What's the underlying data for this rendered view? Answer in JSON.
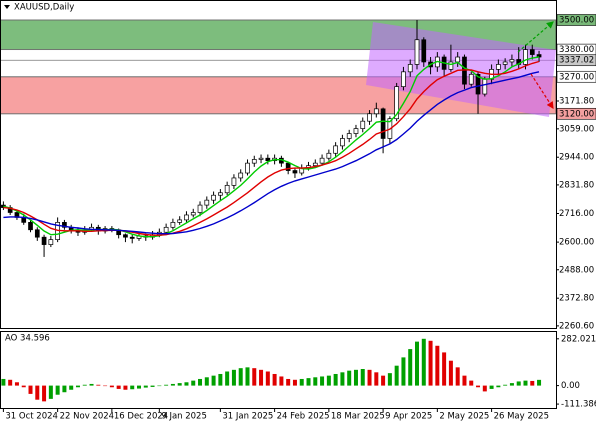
{
  "chart_data": [
    {
      "type": "candlestick",
      "title": "XAUUSD,Daily",
      "xlim": [
        -0.5,
        81.5
      ],
      "ylim": [
        2252,
        3577
      ],
      "yticks": [
        {
          "value": 3171.8,
          "label": "3171.80"
        },
        {
          "value": 3059,
          "label": "3059.00"
        },
        {
          "value": 2944,
          "label": "2944.00"
        },
        {
          "value": 2831.8,
          "label": "2831.80"
        },
        {
          "value": 2716,
          "label": "2716.00"
        },
        {
          "value": 2600,
          "label": "2600.00"
        },
        {
          "value": 2488,
          "label": "2488.00"
        },
        {
          "value": 2372.8,
          "label": "2372.80"
        },
        {
          "value": 2260.6,
          "label": "2260.60"
        }
      ],
      "levels": [
        {
          "value": 3500,
          "label": "3500.00",
          "color": "#78b878"
        },
        {
          "value": 3380,
          "label": "3380.00",
          "color": "#ffffff"
        },
        {
          "value": 3337.02,
          "label": "3337.02",
          "color": "#c8c8c8"
        },
        {
          "value": 3270,
          "label": "3270.00",
          "color": "#ffffff"
        },
        {
          "value": 3120,
          "label": "3120.00",
          "color": "#f4a0a0"
        }
      ],
      "zones": [
        {
          "ylim": [
            3380,
            3500
          ],
          "color": "#7dbd7d"
        },
        {
          "ylim": [
            3120,
            3270
          ],
          "color": "#f7a1a1"
        }
      ],
      "up_color": "#ffffff",
      "down_color": "#000000",
      "open": [
        2750,
        2740,
        2720,
        2700,
        2680,
        2650,
        2620,
        2590,
        2610,
        2680,
        2660,
        2650,
        2640,
        2650,
        2660,
        2645,
        2655,
        2650,
        2630,
        2620,
        2615,
        2625,
        2620,
        2630,
        2640,
        2660,
        2680,
        2690,
        2710,
        2720,
        2750,
        2770,
        2790,
        2800,
        2830,
        2860,
        2880,
        2920,
        2935,
        2940,
        2930,
        2940,
        2920,
        2890,
        2880,
        2900,
        2910,
        2920,
        2940,
        2960,
        2990,
        3020,
        3040,
        3060,
        3090,
        3120,
        3140,
        3020,
        3100,
        3230,
        3290,
        3320,
        3420,
        3330,
        3310,
        3350,
        3300,
        3330,
        3350,
        3240,
        3280,
        3200,
        3260,
        3300,
        3320,
        3330,
        3340,
        3320,
        3380,
        3360
      ],
      "high": [
        2765,
        2750,
        2730,
        2715,
        2690,
        2660,
        2630,
        2625,
        2700,
        2690,
        2670,
        2660,
        2665,
        2675,
        2670,
        2665,
        2665,
        2655,
        2635,
        2630,
        2640,
        2635,
        2645,
        2655,
        2675,
        2695,
        2705,
        2725,
        2735,
        2765,
        2785,
        2805,
        2815,
        2845,
        2875,
        2895,
        2935,
        2950,
        2955,
        2955,
        2955,
        2950,
        2925,
        2900,
        2915,
        2925,
        2935,
        2955,
        2975,
        3005,
        3035,
        3055,
        3075,
        3105,
        3135,
        3165,
        3145,
        3110,
        3245,
        3310,
        3340,
        3500,
        3430,
        3350,
        3370,
        3360,
        3400,
        3370,
        3360,
        3290,
        3290,
        3270,
        3320,
        3340,
        3345,
        3360,
        3390,
        3400,
        3400,
        3375
      ],
      "low": [
        2730,
        2710,
        2690,
        2670,
        2640,
        2605,
        2540,
        2580,
        2600,
        2650,
        2635,
        2625,
        2630,
        2645,
        2630,
        2635,
        2640,
        2615,
        2600,
        2595,
        2605,
        2605,
        2610,
        2620,
        2630,
        2650,
        2670,
        2680,
        2700,
        2705,
        2735,
        2755,
        2770,
        2790,
        2815,
        2845,
        2870,
        2905,
        2920,
        2915,
        2915,
        2905,
        2875,
        2860,
        2870,
        2890,
        2900,
        2910,
        2930,
        2945,
        2975,
        3005,
        3025,
        3045,
        3075,
        3105,
        2960,
        3000,
        3090,
        3215,
        3270,
        3300,
        3310,
        3280,
        3290,
        3270,
        3290,
        3310,
        3220,
        3230,
        3120,
        3190,
        3240,
        3280,
        3300,
        3310,
        3300,
        3300,
        3340,
        3330
      ],
      "close": [
        2740,
        2720,
        2700,
        2680,
        2650,
        2620,
        2590,
        2610,
        2680,
        2660,
        2650,
        2640,
        2650,
        2660,
        2645,
        2655,
        2650,
        2630,
        2620,
        2615,
        2625,
        2620,
        2630,
        2640,
        2660,
        2680,
        2690,
        2710,
        2720,
        2750,
        2770,
        2790,
        2800,
        2830,
        2860,
        2880,
        2920,
        2935,
        2940,
        2930,
        2940,
        2920,
        2890,
        2880,
        2900,
        2910,
        2920,
        2940,
        2960,
        2990,
        3020,
        3040,
        3060,
        3090,
        3120,
        3140,
        3020,
        3100,
        3230,
        3290,
        3320,
        3420,
        3330,
        3310,
        3350,
        3300,
        3330,
        3350,
        3240,
        3280,
        3200,
        3260,
        3300,
        3320,
        3330,
        3340,
        3320,
        3380,
        3360,
        3350
      ],
      "lines": [
        {
          "color": "#00cc00",
          "values": [
            2745,
            2738,
            2726,
            2710,
            2690,
            2668,
            2645,
            2630,
            2632,
            2640,
            2648,
            2650,
            2648,
            2649,
            2652,
            2650,
            2651,
            2650,
            2642,
            2632,
            2625,
            2622,
            2622,
            2626,
            2634,
            2646,
            2662,
            2678,
            2694,
            2710,
            2728,
            2748,
            2768,
            2786,
            2808,
            2830,
            2856,
            2884,
            2908,
            2926,
            2934,
            2934,
            2924,
            2910,
            2898,
            2896,
            2902,
            2912,
            2926,
            2944,
            2966,
            2990,
            3014,
            3036,
            3060,
            3086,
            3090,
            3088,
            3118,
            3162,
            3210,
            3274,
            3300,
            3320,
            3332,
            3326,
            3320,
            3328,
            3305,
            3295,
            3270,
            3260,
            3262,
            3274,
            3290,
            3310,
            3322,
            3338,
            3346,
            3350
          ]
        },
        {
          "color": "#e00000",
          "values": [
            2740,
            2737,
            2730,
            2720,
            2706,
            2690,
            2672,
            2656,
            2648,
            2646,
            2646,
            2646,
            2644,
            2644,
            2646,
            2647,
            2648,
            2648,
            2645,
            2640,
            2635,
            2631,
            2628,
            2628,
            2630,
            2636,
            2644,
            2654,
            2666,
            2680,
            2694,
            2710,
            2726,
            2742,
            2760,
            2780,
            2800,
            2822,
            2844,
            2864,
            2880,
            2892,
            2898,
            2900,
            2900,
            2902,
            2906,
            2912,
            2920,
            2930,
            2944,
            2960,
            2978,
            2996,
            3016,
            3038,
            3048,
            3058,
            3080,
            3108,
            3140,
            3180,
            3210,
            3236,
            3258,
            3272,
            3284,
            3296,
            3298,
            3298,
            3290,
            3284,
            3280,
            3280,
            3284,
            3292,
            3302,
            3314,
            3324,
            3332
          ]
        },
        {
          "color": "#0000cc",
          "values": [
            2700,
            2702,
            2702,
            2700,
            2696,
            2690,
            2682,
            2674,
            2668,
            2664,
            2660,
            2657,
            2654,
            2652,
            2651,
            2650,
            2649,
            2648,
            2646,
            2644,
            2641,
            2638,
            2636,
            2634,
            2634,
            2635,
            2638,
            2642,
            2648,
            2655,
            2664,
            2674,
            2686,
            2698,
            2712,
            2727,
            2743,
            2760,
            2778,
            2796,
            2812,
            2826,
            2838,
            2848,
            2856,
            2864,
            2872,
            2880,
            2888,
            2896,
            2906,
            2918,
            2930,
            2944,
            2958,
            2974,
            2986,
            2998,
            3016,
            3038,
            3062,
            3090,
            3114,
            3136,
            3158,
            3176,
            3192,
            3206,
            3216,
            3226,
            3232,
            3238,
            3244,
            3250,
            3256,
            3262,
            3268,
            3276,
            3284,
            3290
          ]
        }
      ]
    },
    {
      "type": "bar",
      "title": "AO 34.596",
      "xlim": [
        -0.5,
        81.5
      ],
      "ylim": [
        -135,
        323
      ],
      "yticks": [
        282.021,
        {
          "value": 0,
          "label": "0.00"
        },
        -111.386
      ],
      "xticks": [
        {
          "value": 0,
          "label": "31 Oct 2024"
        },
        {
          "value": 8,
          "label": "22 Nov 2024"
        },
        {
          "value": 16,
          "label": "16 Dec 2024"
        },
        {
          "value": 23,
          "label": "9 Jan 2025"
        },
        {
          "value": 32,
          "label": "31 Jan 2025"
        },
        {
          "value": 40,
          "label": "24 Feb 2025"
        },
        {
          "value": 48,
          "label": "18 Mar 2025"
        },
        {
          "value": 56,
          "label": "9 Apr 2025"
        },
        {
          "value": 64,
          "label": "2 May 2025"
        },
        {
          "value": 72,
          "label": "26 May 2025"
        }
      ],
      "up_color": "#00a000",
      "down_color": "#e00000",
      "values": [
        40,
        35,
        20,
        -10,
        -50,
        -85,
        -95,
        -80,
        -55,
        -40,
        -25,
        -10,
        5,
        10,
        5,
        0,
        -10,
        -20,
        -25,
        -22,
        -18,
        -12,
        -8,
        -2,
        5,
        10,
        15,
        20,
        30,
        40,
        50,
        60,
        70,
        85,
        95,
        105,
        110,
        105,
        95,
        85,
        70,
        55,
        40,
        35,
        40,
        45,
        50,
        55,
        60,
        70,
        80,
        90,
        95,
        100,
        95,
        80,
        60,
        75,
        120,
        170,
        220,
        265,
        282,
        270,
        240,
        200,
        150,
        110,
        60,
        30,
        -10,
        -35,
        -20,
        -10,
        5,
        15,
        25,
        30,
        28,
        34.596
      ]
    }
  ]
}
